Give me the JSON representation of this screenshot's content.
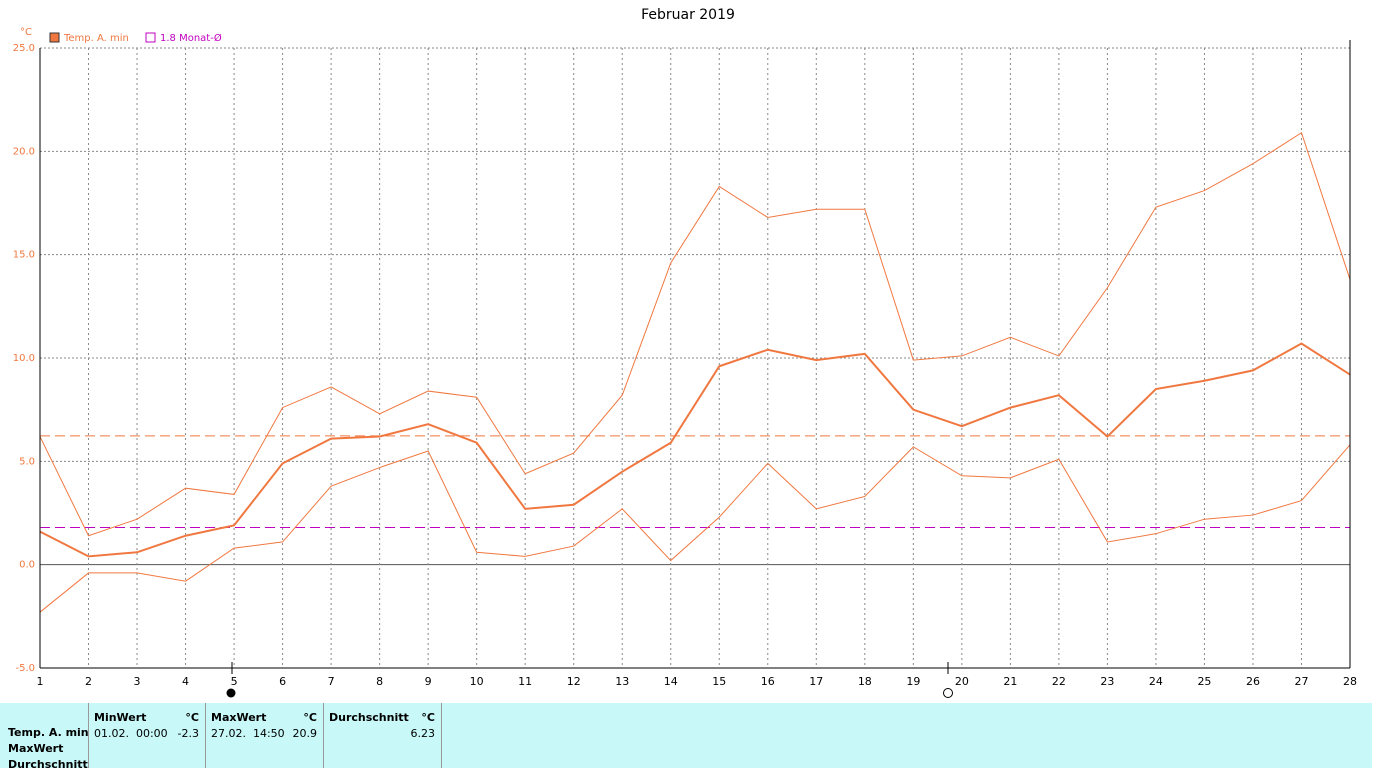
{
  "chart_data": {
    "type": "line",
    "title": "Februar 2019",
    "y_label": "°C",
    "x": [
      1,
      2,
      3,
      4,
      5,
      6,
      7,
      8,
      9,
      10,
      11,
      12,
      13,
      14,
      15,
      16,
      17,
      18,
      19,
      20,
      21,
      22,
      23,
      24,
      25,
      26,
      27,
      28
    ],
    "xlim": [
      1,
      28
    ],
    "xticks": [
      1,
      2,
      3,
      4,
      5,
      6,
      7,
      8,
      9,
      10,
      11,
      12,
      13,
      14,
      15,
      16,
      17,
      18,
      19,
      20,
      21,
      22,
      23,
      24,
      25,
      26,
      27,
      28
    ],
    "ylim": [
      -5,
      25
    ],
    "yticks": [
      {
        "value": -5,
        "label": "-5.0"
      },
      {
        "value": 0,
        "label": "0.0"
      },
      {
        "value": 5,
        "label": "5.0"
      },
      {
        "value": 10,
        "label": "10.0"
      },
      {
        "value": 15,
        "label": "15.0"
      },
      {
        "value": 20,
        "label": "20.0"
      },
      {
        "value": 25,
        "label": "25.0"
      }
    ],
    "grid": true,
    "series": [
      {
        "name": "Temp. A. min",
        "color": "#f07840",
        "linewidth": 2,
        "values": [
          1.6,
          0.4,
          0.6,
          1.4,
          1.9,
          4.9,
          6.1,
          6.2,
          6.8,
          5.9,
          2.7,
          2.9,
          4.5,
          5.9,
          9.6,
          10.4,
          9.9,
          10.2,
          7.5,
          6.7,
          7.6,
          8.2,
          6.2,
          8.5,
          8.9,
          9.4,
          10.7,
          9.2
        ]
      },
      {
        "color": "#f07840",
        "linewidth": 1,
        "values": [
          6.2,
          1.4,
          2.2,
          3.7,
          3.4,
          7.6,
          8.6,
          7.3,
          8.4,
          8.1,
          4.4,
          5.4,
          8.2,
          14.6,
          18.3,
          16.8,
          17.2,
          17.2,
          9.9,
          10.1,
          11.0,
          10.1,
          13.4,
          17.3,
          18.1,
          19.4,
          20.9,
          13.8
        ]
      },
      {
        "color": "#f07840",
        "linewidth": 1,
        "values": [
          -2.3,
          -0.4,
          -0.4,
          -0.8,
          0.8,
          1.1,
          3.8,
          4.7,
          5.5,
          0.6,
          0.4,
          0.9,
          2.7,
          0.2,
          2.3,
          4.9,
          2.7,
          3.3,
          5.7,
          4.3,
          4.2,
          5.1,
          1.1,
          1.5,
          2.2,
          2.4,
          3.1,
          5.8
        ]
      }
    ],
    "reference_lines": [
      {
        "value": 6.23,
        "color": "#f07840"
      },
      {
        "value": 1.8,
        "label": "1.8 Monat-Ø",
        "color": "#c000c0"
      }
    ]
  },
  "table": {
    "row_labels": [
      "Temp. A. min",
      "MaxWert",
      "Durchschnitt"
    ],
    "columns": [
      {
        "header": "MinWert",
        "unit": "°C",
        "date": "01.02.  00:00",
        "value": "-2.3"
      },
      {
        "header": "MaxWert",
        "unit": "°C",
        "date": "27.02.  14:50",
        "value": "20.9"
      },
      {
        "header": "Durchschnitt",
        "unit": "°C",
        "value": "6.23"
      }
    ]
  }
}
